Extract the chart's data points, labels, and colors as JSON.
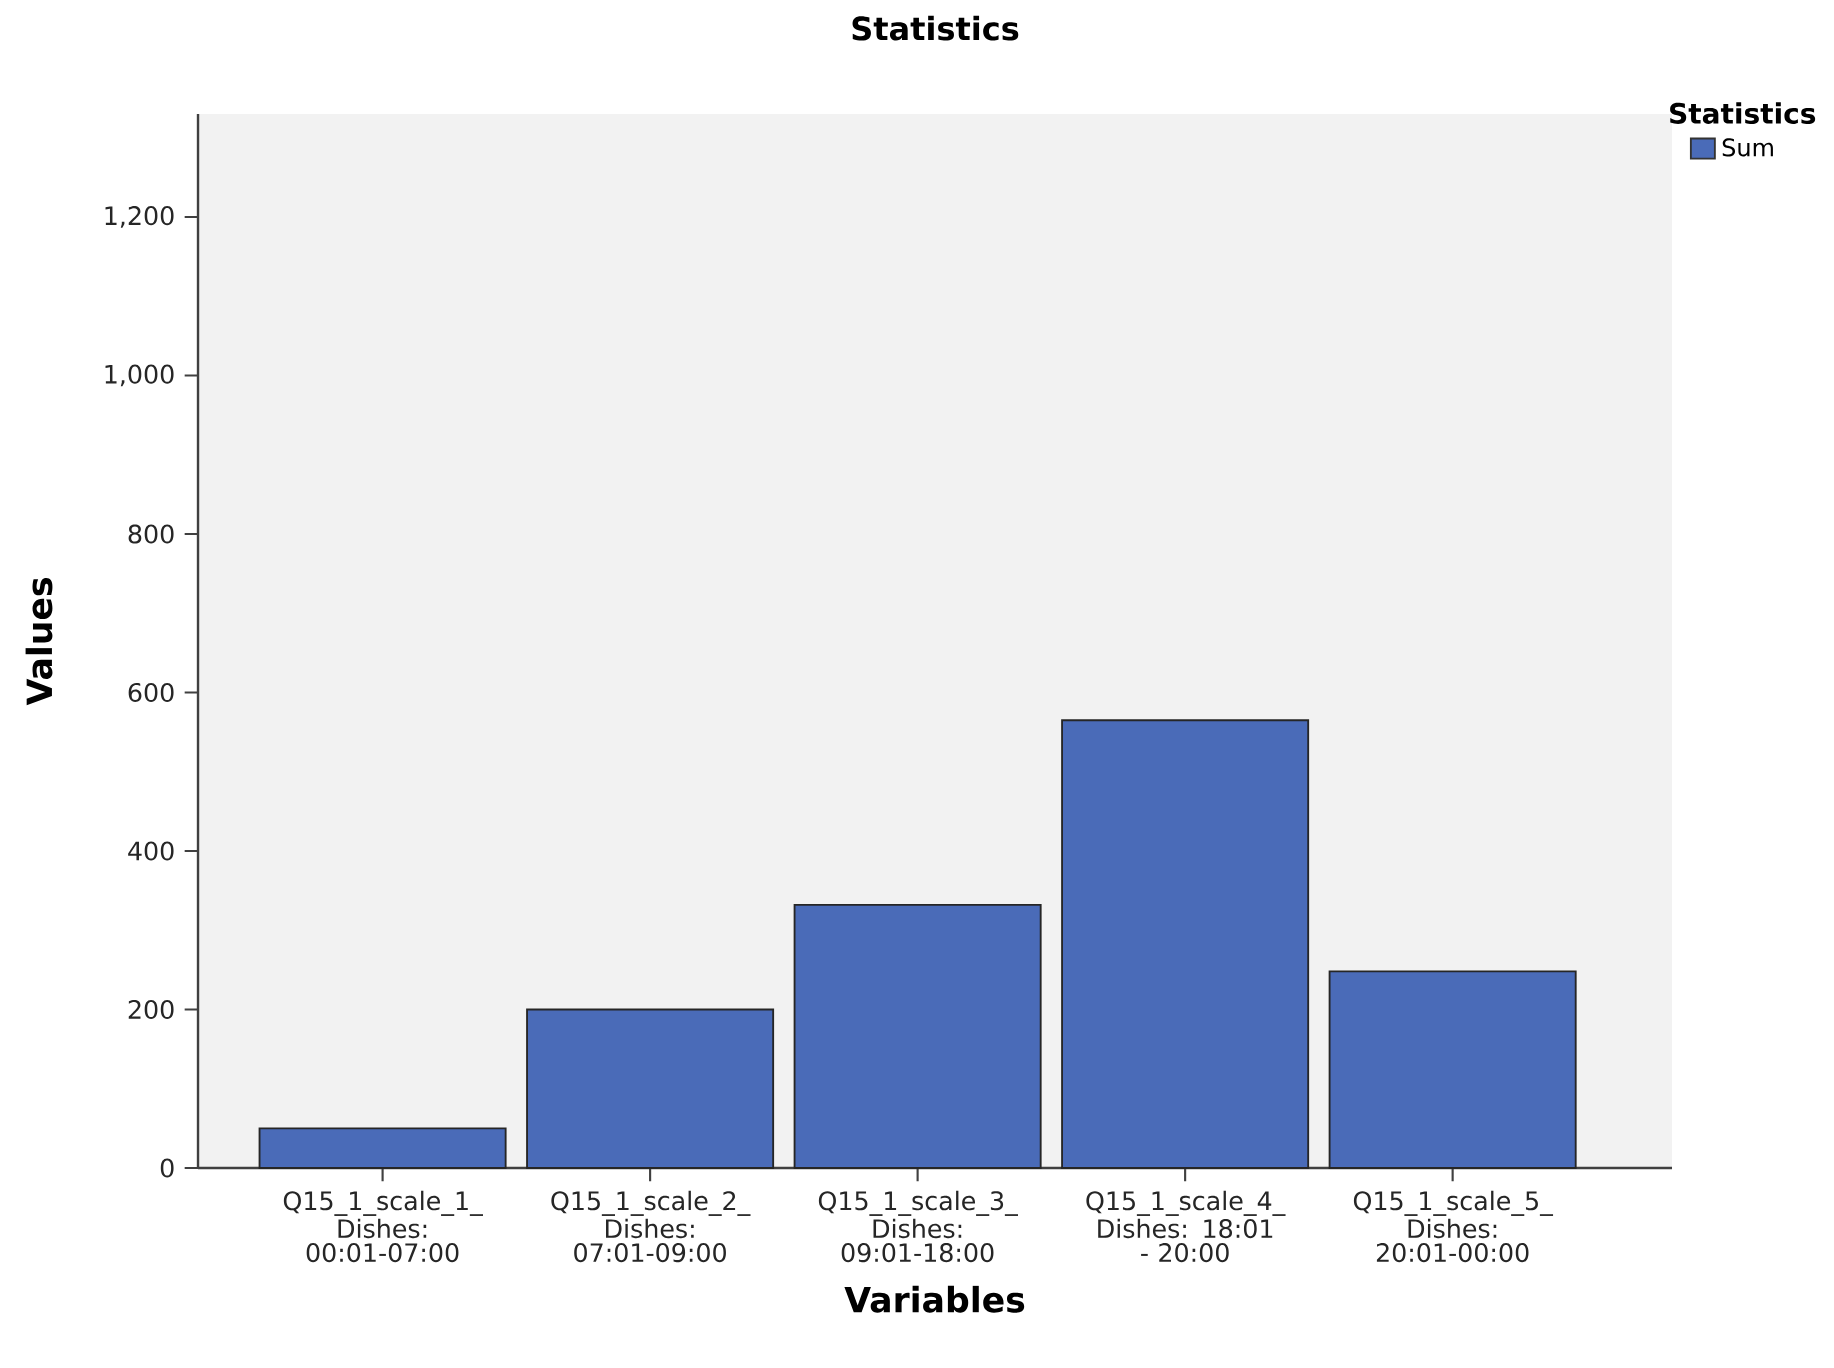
{
  "chart_data": {
    "type": "bar",
    "title": "Statistics",
    "xlabel": "Variables",
    "ylabel": "Values",
    "legend_title": "Statistics",
    "categories": [
      "Q15_1_scale_1_ Dishes: 00:01-07:00",
      "Q15_1_scale_2_ Dishes: 07:01-09:00",
      "Q15_1_scale_3_ Dishes: 09:01-18:00",
      "Q15_1_scale_4_ Dishes: 18:01 - 20:00",
      "Q15_1_scale_5_ Dishes: 20:01-00:00"
    ],
    "series": [
      {
        "name": "Sum",
        "color": "#4a6bb8",
        "values": [
          50,
          200,
          332,
          565,
          248
        ]
      }
    ],
    "ylim": [
      0,
      1330
    ],
    "yticks": [
      0,
      200,
      400,
      600,
      800,
      {
        "value": 1000,
        "label": "1,000"
      },
      {
        "value": 1200,
        "label": "1,200"
      }
    ],
    "grid": false,
    "legend": "top right"
  }
}
